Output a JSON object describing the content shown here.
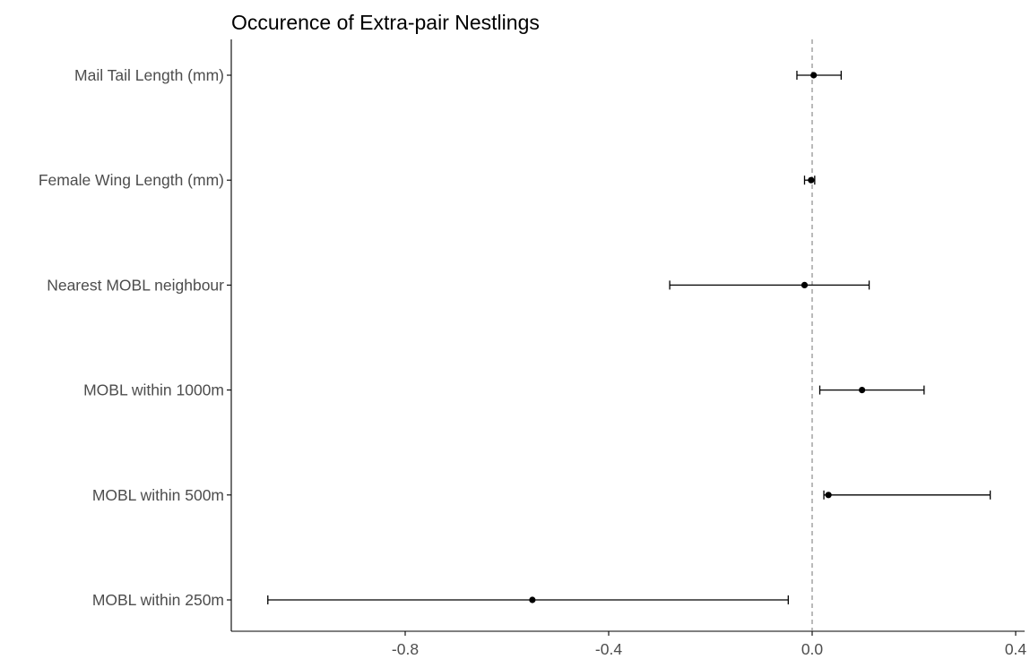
{
  "chart_data": {
    "type": "scatter",
    "subtype": "forest-plot",
    "title": "Occurence of Extra-pair Nestlings",
    "xlabel": "",
    "ylabel": "",
    "xlim": [
      -1.14,
      0.42
    ],
    "x_ticks": [
      -0.8,
      -0.4,
      0.0,
      0.4
    ],
    "x_tick_labels": [
      "-0.8",
      "-0.4",
      "0.0",
      "0.4"
    ],
    "reference_line": {
      "x": 0,
      "style": "dashed",
      "color": "#808080"
    },
    "grid": false,
    "legend": "none",
    "categories": [
      "Mail Tail Length (mm)",
      "Female Wing Length (mm)",
      "Nearest MOBL neighbour",
      "MOBL within 1000m",
      "MOBL within 500m",
      "MOBL within 250m"
    ],
    "estimates": [
      0.003,
      -0.002,
      -0.015,
      0.098,
      0.032,
      -0.55
    ],
    "ci_lower": [
      -0.03,
      -0.015,
      -0.28,
      0.015,
      0.023,
      -1.07
    ],
    "ci_upper": [
      0.057,
      0.005,
      0.112,
      0.22,
      0.35,
      -0.047
    ],
    "colors": {
      "point": "#000000",
      "errorbar": "#000000",
      "axis": "#000000"
    }
  }
}
